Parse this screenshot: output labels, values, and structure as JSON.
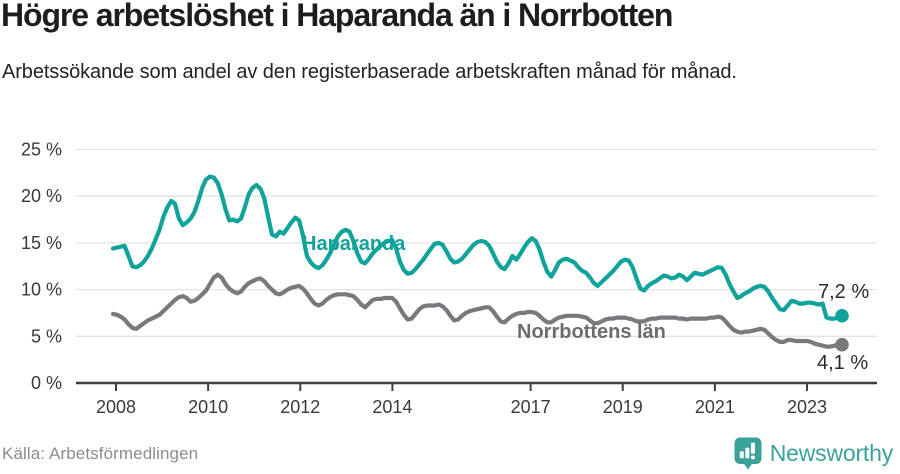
{
  "header": {
    "title": "Högre arbetslöshet i Haparanda än i Norrbotten",
    "subtitle": "Arbetssökande som andel av den registerbaserade arbetskraften månad för månad."
  },
  "footer": {
    "source": "Källa: Arbetsförmedlingen",
    "brand": "Newsworthy"
  },
  "colors": {
    "haparanda": "#0fa39b",
    "norrbotten": "#7a787d",
    "norrbotten_label": "#6e6c71",
    "value_label": "#2a2a2a",
    "grid": "#e3e3e3",
    "axis": "#3f3f3f",
    "tick_label": "#3a3a3a",
    "brand_teal": "#3ba19b"
  },
  "chart_data": {
    "type": "line",
    "title": "Högre arbetslöshet i Haparanda än i Norrbotten",
    "subtitle": "Arbetssökande som andel av den registerbaserade arbetskraften månad för månad.",
    "x_unit": "month",
    "x_range_years": [
      2008,
      2023.75
    ],
    "ylim": [
      0,
      25
    ],
    "grid": "horizontal",
    "legend": "inline-labels",
    "y_ticks": [
      {
        "v": 0,
        "label": "0 %"
      },
      {
        "v": 5,
        "label": "5 %"
      },
      {
        "v": 10,
        "label": "10 %"
      },
      {
        "v": 15,
        "label": "15 %"
      },
      {
        "v": 20,
        "label": "20 %"
      },
      {
        "v": 25,
        "label": "25 %"
      }
    ],
    "x_ticks": [
      {
        "year": 2008,
        "label": "2008"
      },
      {
        "year": 2010,
        "label": "2010"
      },
      {
        "year": 2012,
        "label": "2012"
      },
      {
        "year": 2014,
        "label": "2014"
      },
      {
        "year": 2017,
        "label": "2017"
      },
      {
        "year": 2019,
        "label": "2019"
      },
      {
        "year": 2021,
        "label": "2021"
      },
      {
        "year": 2023,
        "label": "2023"
      }
    ],
    "series": [
      {
        "name": "Haparanda",
        "end_label": "7,2 %",
        "end_value": 7.2,
        "values": [
          14.4,
          14.5,
          14.6,
          14.7,
          13.6,
          12.5,
          12.4,
          12.6,
          13.0,
          13.6,
          14.4,
          15.4,
          16.4,
          17.8,
          18.8,
          19.5,
          19.2,
          17.6,
          16.9,
          17.2,
          17.6,
          18.3,
          19.5,
          20.9,
          21.8,
          22.1,
          22.0,
          21.4,
          20.2,
          18.6,
          17.4,
          17.5,
          17.3,
          17.6,
          18.8,
          20.2,
          20.9,
          21.2,
          20.8,
          19.8,
          17.8,
          15.9,
          15.7,
          16.2,
          16.0,
          16.6,
          17.2,
          17.7,
          17.4,
          15.8,
          13.6,
          12.9,
          12.5,
          12.3,
          12.6,
          13.2,
          13.9,
          14.8,
          15.7,
          16.2,
          16.4,
          16.2,
          15.2,
          13.9,
          13.0,
          12.8,
          13.3,
          13.9,
          14.3,
          14.7,
          15.0,
          15.2,
          15.3,
          14.4,
          13.0,
          12.1,
          11.7,
          11.8,
          12.2,
          12.7,
          13.2,
          13.8,
          14.4,
          14.9,
          15.0,
          14.8,
          14.1,
          13.3,
          12.9,
          13.0,
          13.3,
          13.8,
          14.3,
          14.8,
          15.1,
          15.2,
          15.1,
          14.7,
          13.9,
          13.0,
          12.4,
          12.2,
          12.8,
          13.6,
          13.2,
          13.8,
          14.5,
          15.1,
          15.5,
          15.2,
          14.3,
          13.0,
          11.9,
          11.4,
          12.1,
          12.9,
          13.2,
          13.3,
          13.1,
          12.9,
          12.4,
          12.0,
          11.8,
          11.3,
          10.7,
          10.4,
          10.8,
          11.2,
          11.6,
          12.0,
          12.5,
          13.0,
          13.2,
          13.1,
          12.4,
          11.2,
          10.1,
          9.9,
          10.4,
          10.7,
          10.9,
          11.2,
          11.5,
          11.4,
          11.2,
          11.3,
          11.6,
          11.4,
          11.0,
          11.4,
          11.8,
          11.7,
          11.6,
          11.8,
          12.0,
          12.2,
          12.4,
          12.3,
          11.6,
          10.6,
          9.8,
          9.1,
          9.3,
          9.6,
          9.8,
          10.1,
          10.3,
          10.4,
          10.3,
          9.8,
          9.1,
          8.5,
          7.9,
          7.8,
          8.3,
          8.8,
          8.7,
          8.5,
          8.5,
          8.6,
          8.6,
          8.5,
          8.4,
          8.5,
          7.0,
          6.9,
          6.9,
          7.0,
          7.2
        ]
      },
      {
        "name": "Norrbottens län",
        "end_label": "4,1 %",
        "end_value": 4.1,
        "values": [
          7.4,
          7.3,
          7.1,
          6.8,
          6.3,
          5.9,
          5.8,
          6.1,
          6.4,
          6.7,
          6.9,
          7.1,
          7.3,
          7.7,
          8.1,
          8.5,
          8.9,
          9.2,
          9.3,
          9.1,
          8.7,
          8.8,
          9.1,
          9.5,
          9.9,
          10.6,
          11.3,
          11.6,
          11.3,
          10.6,
          10.1,
          9.8,
          9.6,
          9.8,
          10.3,
          10.7,
          10.9,
          11.1,
          11.2,
          10.9,
          10.4,
          10.0,
          9.6,
          9.5,
          9.7,
          10.0,
          10.2,
          10.3,
          10.4,
          10.1,
          9.6,
          9.0,
          8.5,
          8.3,
          8.5,
          8.9,
          9.2,
          9.4,
          9.5,
          9.5,
          9.5,
          9.4,
          9.3,
          8.9,
          8.4,
          8.1,
          8.5,
          8.9,
          9.0,
          9.0,
          9.1,
          9.1,
          9.1,
          8.7,
          8.0,
          7.3,
          6.8,
          6.9,
          7.4,
          7.9,
          8.2,
          8.3,
          8.3,
          8.3,
          8.4,
          8.2,
          7.8,
          7.2,
          6.7,
          6.8,
          7.2,
          7.5,
          7.7,
          7.8,
          7.9,
          8.0,
          8.1,
          8.1,
          7.7,
          7.1,
          6.6,
          6.5,
          6.9,
          7.2,
          7.4,
          7.5,
          7.5,
          7.6,
          7.6,
          7.5,
          7.2,
          6.8,
          6.5,
          6.5,
          6.8,
          7.0,
          7.1,
          7.2,
          7.2,
          7.2,
          7.2,
          7.1,
          7.0,
          6.7,
          6.4,
          6.4,
          6.6,
          6.8,
          6.9,
          6.9,
          7.0,
          7.0,
          7.0,
          6.9,
          6.8,
          6.6,
          6.6,
          6.6,
          6.8,
          6.9,
          6.9,
          7.0,
          7.0,
          7.0,
          7.0,
          7.0,
          6.9,
          6.9,
          6.8,
          6.9,
          6.9,
          6.9,
          6.9,
          6.9,
          7.0,
          7.0,
          7.1,
          7.0,
          6.6,
          6.1,
          5.7,
          5.5,
          5.4,
          5.5,
          5.5,
          5.6,
          5.7,
          5.8,
          5.7,
          5.3,
          4.9,
          4.6,
          4.4,
          4.4,
          4.6,
          4.6,
          4.5,
          4.5,
          4.5,
          4.5,
          4.4,
          4.2,
          4.1,
          4.0,
          3.9,
          3.9,
          4.0,
          4.0,
          4.1
        ]
      }
    ]
  }
}
